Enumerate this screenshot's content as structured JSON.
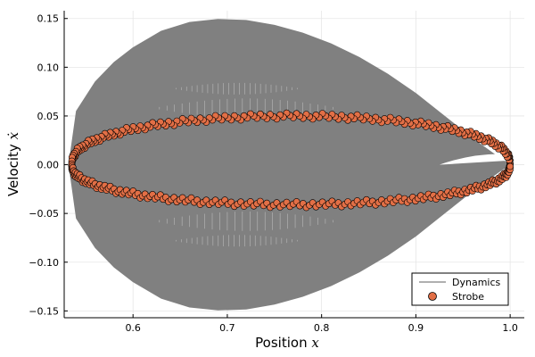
{
  "chart_data": {
    "type": "scatter",
    "title": "",
    "xlabel": "Position",
    "xlabel_var": "x",
    "ylabel": "Velocity",
    "ylabel_var": "ẋ",
    "xlim": [
      0.527,
      1.015
    ],
    "ylim": [
      -0.157,
      0.158
    ],
    "xticks": [
      0.6,
      0.7,
      0.8,
      0.9,
      1.0
    ],
    "xtick_labels": [
      "0.6",
      "0.7",
      "0.8",
      "0.9",
      "1.0"
    ],
    "yticks": [
      -0.15,
      -0.1,
      -0.05,
      0.0,
      0.05,
      0.1,
      0.15
    ],
    "ytick_labels": [
      "−0.15",
      "−0.10",
      "−0.05",
      "0.00",
      "0.05",
      "0.10",
      "0.15"
    ],
    "grid": true,
    "legend_position": "bottom-right",
    "series": [
      {
        "name": "Dynamics",
        "kind": "line",
        "color": "#808080",
        "outer_envelope": {
          "x": [
            0.532,
            0.54,
            0.56,
            0.58,
            0.6,
            0.63,
            0.66,
            0.69,
            0.72,
            0.75,
            0.78,
            0.81,
            0.84,
            0.87,
            0.9,
            0.93,
            0.96,
            0.99,
            1.0
          ],
          "y_upper": [
            0.0,
            0.055,
            0.085,
            0.105,
            0.12,
            0.137,
            0.146,
            0.149,
            0.148,
            0.143,
            0.135,
            0.124,
            0.11,
            0.093,
            0.073,
            0.05,
            0.027,
            0.006,
            0.0
          ],
          "y_lower": [
            0.0,
            -0.055,
            -0.085,
            -0.105,
            -0.12,
            -0.137,
            -0.146,
            -0.149,
            -0.148,
            -0.143,
            -0.135,
            -0.124,
            -0.11,
            -0.093,
            -0.073,
            -0.05,
            -0.027,
            -0.006,
            0.0
          ]
        }
      },
      {
        "name": "Strobe",
        "kind": "scatter",
        "color": "#e26f46",
        "marker": "circle",
        "orbit": {
          "x_min": 0.535,
          "x_max": 1.0,
          "x_center": 0.77,
          "y_max": 0.05,
          "y_min": -0.041,
          "band_width": 0.006
        },
        "point_count": 420
      }
    ]
  }
}
